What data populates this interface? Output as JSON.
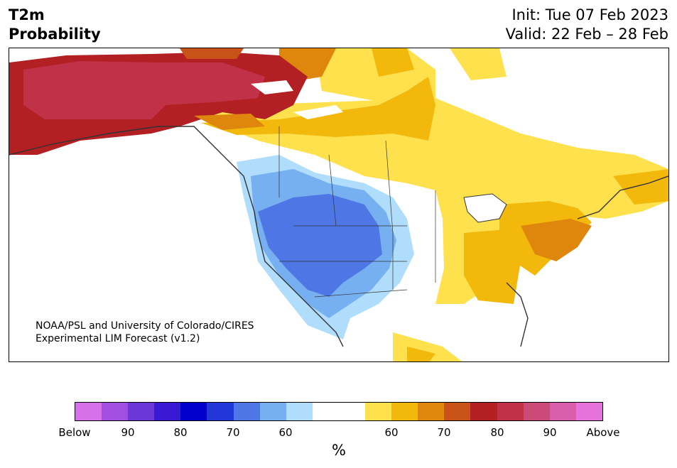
{
  "header": {
    "title_line1": "T2m",
    "title_line2": "Probability",
    "init": "Init: Tue 07 Feb 2023",
    "valid": "Valid: 22 Feb – 28 Feb"
  },
  "map": {
    "credit_line1": "NOAA/PSL and University of Colorado/CIRES",
    "credit_line2": "Experimental LIM Forecast (v1.2)"
  },
  "colorbar": {
    "colors": [
      "#d672e9",
      "#a24fe0",
      "#6b37d8",
      "#3a19d5",
      "#0000cd",
      "#2337d8",
      "#4f76e5",
      "#76b0f0",
      "#b0ddfb",
      "#ffffff",
      "#ffffff",
      "#ffe14d",
      "#f2b80c",
      "#df860d",
      "#c95219",
      "#b22024",
      "#c13249",
      "#cb4a78",
      "#d95fad",
      "#e673dc"
    ],
    "tick_labels": [
      "Below",
      "90",
      "80",
      "70",
      "60",
      "60",
      "70",
      "80",
      "90",
      "Above"
    ],
    "unit": "%"
  }
}
